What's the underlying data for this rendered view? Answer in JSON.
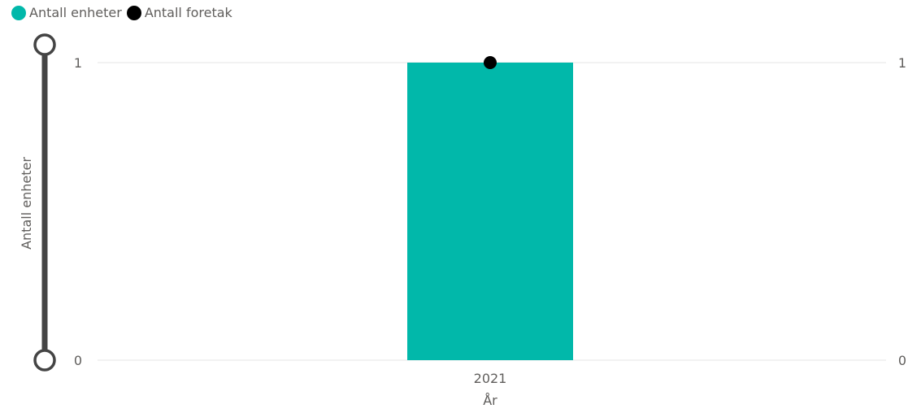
{
  "legend": {
    "items": [
      {
        "label": "Antall enheter",
        "color": "#01B8AA"
      },
      {
        "label": "Antall foretak",
        "color": "#000000"
      }
    ]
  },
  "chart_data": {
    "type": "bar",
    "categories": [
      "2021"
    ],
    "series": [
      {
        "name": "Antall enheter",
        "type": "bar",
        "values": [
          1
        ],
        "color": "#01B8AA",
        "axis": "left"
      },
      {
        "name": "Antall foretak",
        "type": "line",
        "values": [
          1
        ],
        "color": "#000000",
        "axis": "right"
      }
    ],
    "xlabel": "År",
    "ylabel": "Antall enheter",
    "ylim": [
      0,
      1
    ],
    "y2lim": [
      0,
      1
    ],
    "yticks": [
      "0",
      "1"
    ],
    "y2ticks": [
      "0",
      "1"
    ],
    "grid": true,
    "legend_position": "top-left",
    "range_slider": {
      "min": 0,
      "max": 1,
      "color": "#444444"
    }
  }
}
